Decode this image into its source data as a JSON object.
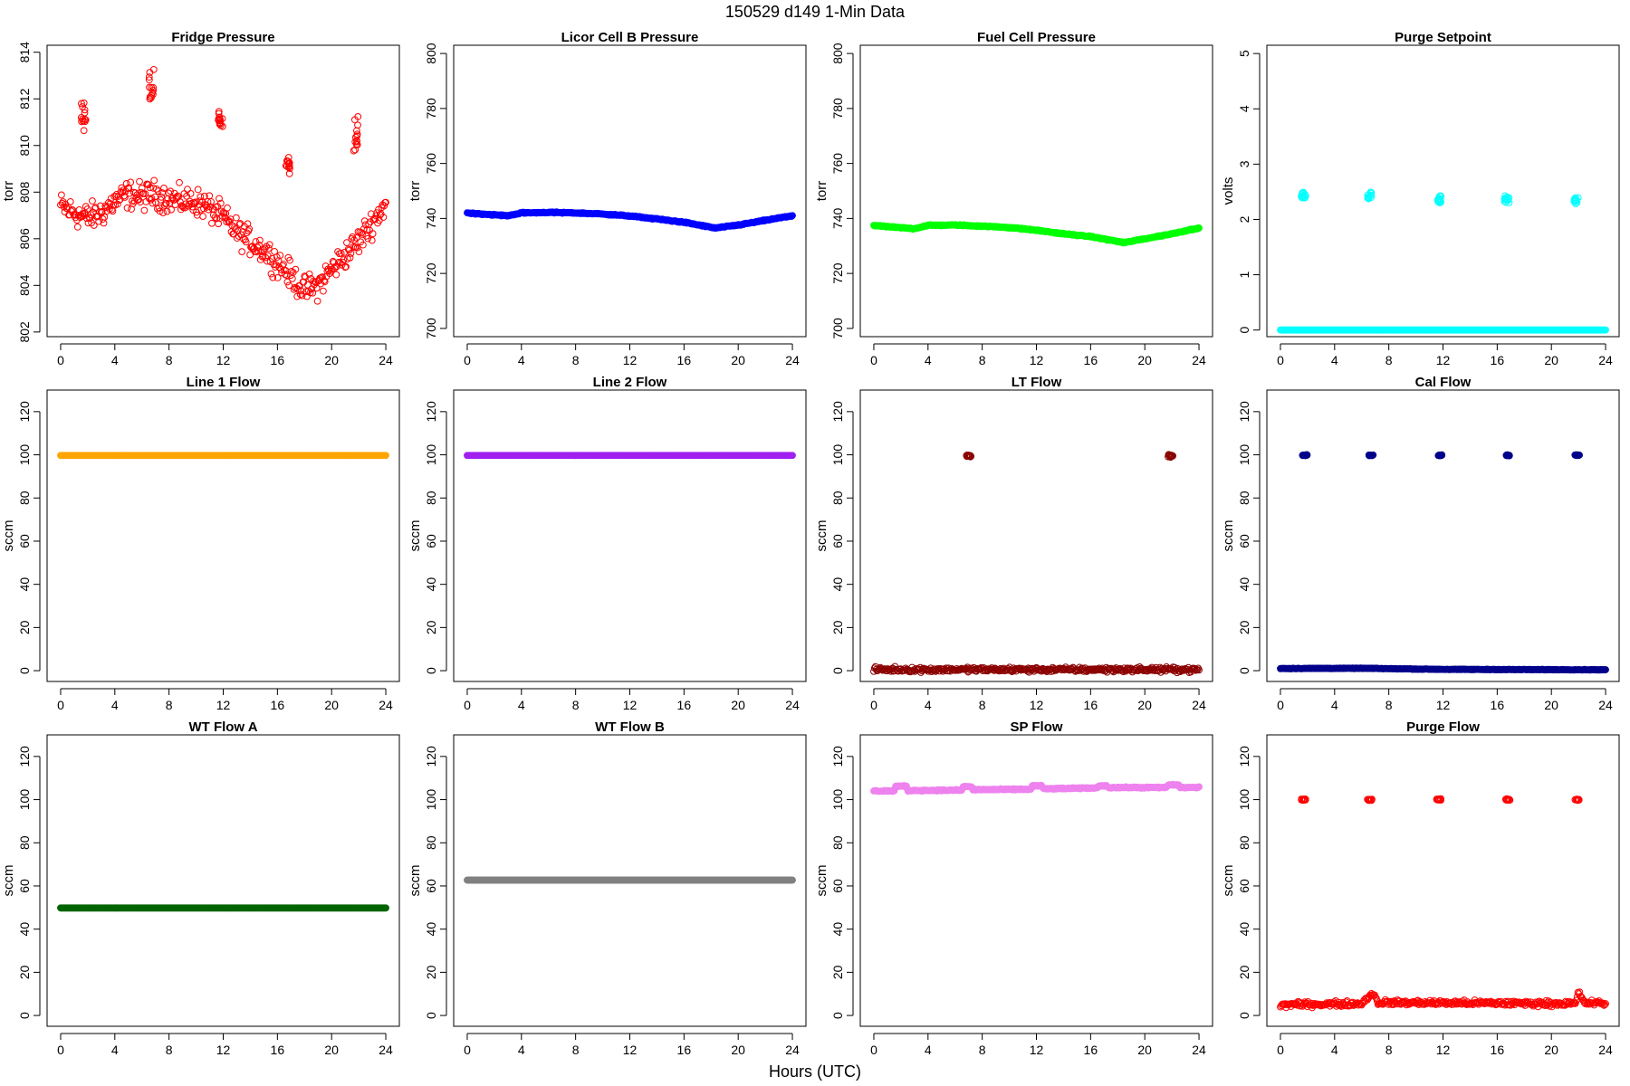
{
  "figure": {
    "suptitle": "150529   d149   1-Min Data",
    "xlabel": "Hours (UTC)"
  },
  "chart_data": [
    {
      "type": "scatter",
      "title": "Fridge Pressure",
      "ylabel": "torr",
      "xlim": [
        -1,
        25
      ],
      "ylim": [
        801.8,
        814.3
      ],
      "xticks": [
        0,
        4,
        8,
        12,
        16,
        20,
        24
      ],
      "yticks": [
        802,
        804,
        806,
        808,
        810,
        812,
        814
      ],
      "color": "#ff0000",
      "marker": "open-circle",
      "series": [
        {
          "baseline": [
            [
              0,
              807.4
            ],
            [
              1,
              807.1
            ],
            [
              2,
              806.9
            ],
            [
              3,
              807.1
            ],
            [
              4,
              807.6
            ],
            [
              5,
              807.9
            ],
            [
              6,
              807.8
            ],
            [
              7,
              807.9
            ],
            [
              8,
              807.7
            ],
            [
              9,
              807.6
            ],
            [
              10,
              807.6
            ],
            [
              11,
              807.3
            ],
            [
              12,
              806.9
            ],
            [
              13,
              806.3
            ],
            [
              14,
              805.9
            ],
            [
              15,
              805.5
            ],
            [
              16,
              805.0
            ],
            [
              17,
              804.4
            ],
            [
              18,
              803.8
            ],
            [
              19,
              804.0
            ],
            [
              20,
              804.7
            ],
            [
              21,
              805.3
            ],
            [
              22,
              805.9
            ],
            [
              23,
              806.7
            ],
            [
              24,
              807.5
            ]
          ],
          "noise": 0.45,
          "spikes": [
            {
              "x": 1.7,
              "y": 811.3,
              "spread": 0.5
            },
            {
              "x": 6.7,
              "y": 812.4,
              "spread": 0.7
            },
            {
              "x": 11.8,
              "y": 811.1,
              "spread": 0.4
            },
            {
              "x": 16.8,
              "y": 809.1,
              "spread": 0.4
            },
            {
              "x": 21.8,
              "y": 810.4,
              "spread": 0.8
            }
          ]
        }
      ]
    },
    {
      "type": "scatter",
      "title": "Licor Cell B Pressure",
      "ylabel": "torr",
      "xlim": [
        -1,
        25
      ],
      "ylim": [
        697,
        803
      ],
      "xticks": [
        0,
        4,
        8,
        12,
        16,
        20,
        24
      ],
      "yticks": [
        700,
        720,
        740,
        760,
        780,
        800
      ],
      "color": "#0000ff",
      "marker": "filled-circle",
      "series": [
        {
          "baseline": [
            [
              0,
              742.0
            ],
            [
              2,
              741.3
            ],
            [
              3,
              741.0
            ],
            [
              4,
              742.0
            ],
            [
              6,
              742.2
            ],
            [
              8,
              742.0
            ],
            [
              10,
              741.6
            ],
            [
              12,
              740.9
            ],
            [
              14,
              739.8
            ],
            [
              16,
              738.6
            ],
            [
              18.3,
              736.5
            ],
            [
              20,
              737.6
            ],
            [
              22,
              739.3
            ],
            [
              24,
              741.0
            ]
          ],
          "noise": 0.15,
          "spikes": []
        }
      ]
    },
    {
      "type": "scatter",
      "title": "Fuel Cell Pressure",
      "ylabel": "torr",
      "xlim": [
        -1,
        25
      ],
      "ylim": [
        697,
        803
      ],
      "xticks": [
        0,
        4,
        8,
        12,
        16,
        20,
        24
      ],
      "yticks": [
        700,
        720,
        740,
        760,
        780,
        800
      ],
      "color": "#00ff00",
      "marker": "filled-circle",
      "series": [
        {
          "baseline": [
            [
              0,
              737.4
            ],
            [
              2,
              736.6
            ],
            [
              3,
              736.3
            ],
            [
              4,
              737.5
            ],
            [
              6,
              737.6
            ],
            [
              8,
              737.2
            ],
            [
              10,
              736.7
            ],
            [
              12,
              735.7
            ],
            [
              14,
              734.4
            ],
            [
              16,
              733.4
            ],
            [
              18.5,
              731.2
            ],
            [
              20,
              732.6
            ],
            [
              22,
              734.4
            ],
            [
              24,
              736.6
            ]
          ],
          "noise": 0.15,
          "spikes": []
        }
      ]
    },
    {
      "type": "scatter",
      "title": "Purge Setpoint",
      "ylabel": "volts",
      "xlim": [
        -1,
        25
      ],
      "ylim": [
        -0.12,
        5.15
      ],
      "xticks": [
        0,
        4,
        8,
        12,
        16,
        20,
        24
      ],
      "yticks": [
        0,
        1,
        2,
        3,
        4,
        5
      ],
      "color": "#00ffff",
      "marker": "open-circle",
      "series": [
        {
          "baseline": [
            [
              0,
              0
            ],
            [
              24,
              0
            ]
          ],
          "noise": 0,
          "spikes": [
            {
              "x": 1.7,
              "y": 2.42,
              "spread": 0.06
            },
            {
              "x": 6.6,
              "y": 2.42,
              "spread": 0.06
            },
            {
              "x": 11.7,
              "y": 2.37,
              "spread": 0.06
            },
            {
              "x": 16.7,
              "y": 2.37,
              "spread": 0.06
            },
            {
              "x": 21.8,
              "y": 2.35,
              "spread": 0.06
            }
          ]
        }
      ]
    },
    {
      "type": "scatter",
      "title": "Line 1 Flow",
      "ylabel": "sccm",
      "xlim": [
        -1,
        25
      ],
      "ylim": [
        -5,
        130
      ],
      "xticks": [
        0,
        4,
        8,
        12,
        16,
        20,
        24
      ],
      "yticks": [
        0,
        20,
        40,
        60,
        80,
        100,
        120
      ],
      "color": "#ffa500",
      "marker": "filled-circle",
      "series": [
        {
          "baseline": [
            [
              0,
              99.7
            ],
            [
              24,
              99.7
            ]
          ],
          "noise": 0,
          "spikes": []
        }
      ]
    },
    {
      "type": "scatter",
      "title": "Line 2 Flow",
      "ylabel": "sccm",
      "xlim": [
        -1,
        25
      ],
      "ylim": [
        -5,
        130
      ],
      "xticks": [
        0,
        4,
        8,
        12,
        16,
        20,
        24
      ],
      "yticks": [
        0,
        20,
        40,
        60,
        80,
        100,
        120
      ],
      "color": "#a020f0",
      "marker": "filled-circle",
      "series": [
        {
          "baseline": [
            [
              0,
              99.7
            ],
            [
              24,
              99.7
            ]
          ],
          "noise": 0,
          "spikes": []
        }
      ]
    },
    {
      "type": "scatter",
      "title": "LT Flow",
      "ylabel": "sccm",
      "xlim": [
        -1,
        25
      ],
      "ylim": [
        -5,
        130
      ],
      "xticks": [
        0,
        4,
        8,
        12,
        16,
        20,
        24
      ],
      "yticks": [
        0,
        20,
        40,
        60,
        80,
        100,
        120
      ],
      "color": "#8b0000",
      "marker": "open-circle",
      "series": [
        {
          "baseline": [
            [
              0,
              0.5
            ],
            [
              24,
              0.5
            ]
          ],
          "noise": 0.8,
          "spikes": [
            {
              "x": 7.0,
              "y": 99.5,
              "spread": 0.8
            },
            {
              "x": 21.9,
              "y": 99.5,
              "spread": 0.8
            }
          ]
        }
      ]
    },
    {
      "type": "scatter",
      "title": "Cal Flow",
      "ylabel": "sccm",
      "xlim": [
        -1,
        25
      ],
      "ylim": [
        -5,
        130
      ],
      "xticks": [
        0,
        4,
        8,
        12,
        16,
        20,
        24
      ],
      "yticks": [
        0,
        20,
        40,
        60,
        80,
        100,
        120
      ],
      "color": "#00008b",
      "marker": "filled-circle",
      "series": [
        {
          "baseline": [
            [
              0,
              1.0
            ],
            [
              6,
              1.1
            ],
            [
              12,
              0.6
            ],
            [
              24,
              0.4
            ]
          ],
          "noise": 0.1,
          "spikes": [
            {
              "x": 1.8,
              "y": 99.8,
              "spread": 0.2
            },
            {
              "x": 6.7,
              "y": 99.8,
              "spread": 0.2
            },
            {
              "x": 11.8,
              "y": 99.8,
              "spread": 0.2
            },
            {
              "x": 16.8,
              "y": 99.8,
              "spread": 0.2
            },
            {
              "x": 21.9,
              "y": 99.8,
              "spread": 0.2
            }
          ]
        }
      ]
    },
    {
      "type": "scatter",
      "title": "WT Flow A",
      "ylabel": "sccm",
      "xlim": [
        -1,
        25
      ],
      "ylim": [
        -5,
        130
      ],
      "xticks": [
        0,
        4,
        8,
        12,
        16,
        20,
        24
      ],
      "yticks": [
        0,
        20,
        40,
        60,
        80,
        100,
        120
      ],
      "color": "#006400",
      "marker": "filled-circle",
      "series": [
        {
          "baseline": [
            [
              0,
              49.8
            ],
            [
              24,
              49.8
            ]
          ],
          "noise": 0,
          "spikes": []
        }
      ]
    },
    {
      "type": "scatter",
      "title": "WT Flow B",
      "ylabel": "sccm",
      "xlim": [
        -1,
        25
      ],
      "ylim": [
        -5,
        130
      ],
      "xticks": [
        0,
        4,
        8,
        12,
        16,
        20,
        24
      ],
      "yticks": [
        0,
        20,
        40,
        60,
        80,
        100,
        120
      ],
      "color": "#808080",
      "marker": "filled-circle",
      "series": [
        {
          "baseline": [
            [
              0,
              62.7
            ],
            [
              24,
              62.7
            ]
          ],
          "noise": 0,
          "spikes": []
        }
      ]
    },
    {
      "type": "scatter",
      "title": "SP Flow",
      "ylabel": "sccm",
      "xlim": [
        -1,
        25
      ],
      "ylim": [
        -5,
        130
      ],
      "xticks": [
        0,
        4,
        8,
        12,
        16,
        20,
        24
      ],
      "yticks": [
        0,
        20,
        40,
        60,
        80,
        100,
        120
      ],
      "color": "#ee82ee",
      "marker": "filled-circle",
      "series": [
        {
          "baseline": [
            [
              0,
              104.0
            ],
            [
              1.5,
              104.0
            ],
            [
              1.6,
              106.2
            ],
            [
              2.4,
              106.2
            ],
            [
              2.5,
              104.2
            ],
            [
              6.5,
              104.4
            ],
            [
              6.6,
              106.0
            ],
            [
              7.2,
              106.0
            ],
            [
              7.3,
              104.6
            ],
            [
              11.6,
              104.8
            ],
            [
              11.7,
              106.4
            ],
            [
              12.4,
              106.4
            ],
            [
              12.5,
              105.0
            ],
            [
              16.5,
              105.4
            ],
            [
              16.6,
              106.4
            ],
            [
              17.2,
              106.4
            ],
            [
              17.3,
              105.6
            ],
            [
              21.6,
              105.6
            ],
            [
              21.7,
              106.8
            ],
            [
              22.5,
              106.8
            ],
            [
              22.6,
              105.6
            ],
            [
              24,
              105.6
            ]
          ],
          "noise": 0.2,
          "spikes": []
        }
      ]
    },
    {
      "type": "scatter",
      "title": "Purge Flow",
      "ylabel": "sccm",
      "xlim": [
        -1,
        25
      ],
      "ylim": [
        -5,
        130
      ],
      "xticks": [
        0,
        4,
        8,
        12,
        16,
        20,
        24
      ],
      "yticks": [
        0,
        20,
        40,
        60,
        80,
        100,
        120
      ],
      "color": "#ff0000",
      "marker": "open-circle",
      "series": [
        {
          "baseline": [
            [
              0,
              5.0
            ],
            [
              6,
              5.5
            ],
            [
              6.8,
              10.5
            ],
            [
              7.2,
              6.0
            ],
            [
              21.8,
              5.5
            ],
            [
              22.0,
              11.0
            ],
            [
              22.4,
              6.0
            ],
            [
              24,
              5.5
            ]
          ],
          "noise": 0.9,
          "spikes": [
            {
              "x": 1.7,
              "y": 100.0,
              "spread": 0.3
            },
            {
              "x": 6.6,
              "y": 100.0,
              "spread": 0.3
            },
            {
              "x": 11.7,
              "y": 100.0,
              "spread": 0.3
            },
            {
              "x": 16.8,
              "y": 100.0,
              "spread": 0.3
            },
            {
              "x": 21.9,
              "y": 100.0,
              "spread": 0.3
            }
          ]
        }
      ]
    }
  ]
}
